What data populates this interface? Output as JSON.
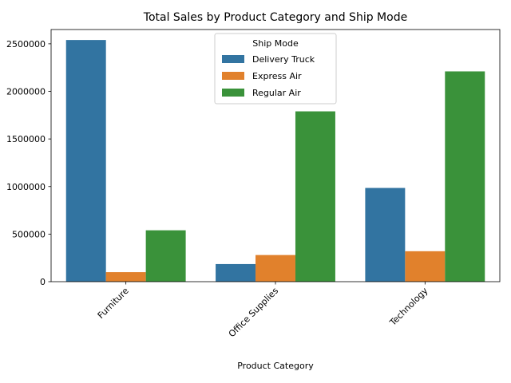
{
  "chart_data": {
    "type": "bar",
    "title": "Total Sales by Product Category and Ship Mode",
    "xlabel": "Product Category",
    "ylabel": "",
    "categories": [
      "Furniture",
      "Office Supplies",
      "Technology"
    ],
    "series": [
      {
        "name": "Delivery Truck",
        "color": "#3274a1",
        "values": [
          2540000,
          185000,
          985000
        ]
      },
      {
        "name": "Express Air",
        "color": "#e1812c",
        "values": [
          100000,
          280000,
          320000
        ]
      },
      {
        "name": "Regular Air",
        "color": "#3a923a",
        "values": [
          540000,
          1790000,
          2210000
        ]
      }
    ],
    "ylim": [
      0,
      2650000
    ],
    "yticks": [
      0,
      500000,
      1000000,
      1500000,
      2000000,
      2500000
    ],
    "ytick_labels": [
      "0",
      "500000",
      "1000000",
      "1500000",
      "2000000",
      "2500000"
    ],
    "legend": {
      "title": "Ship Mode",
      "placement": "top-center"
    },
    "grid": false
  }
}
